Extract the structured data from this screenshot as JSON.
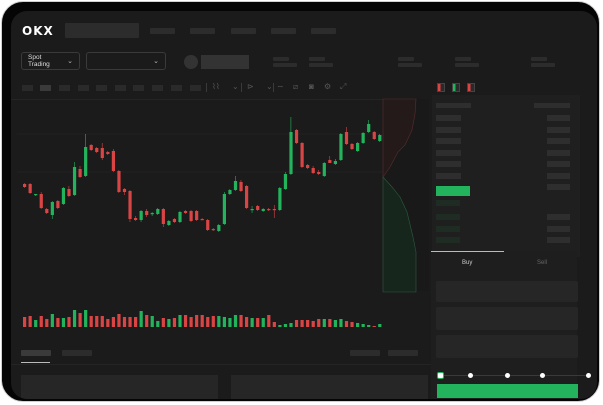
{
  "header": {
    "logo": "OKX"
  },
  "controls": {
    "market_type": "Spot Trading",
    "chevron": "⌄"
  },
  "toolbar": {
    "icons": [
      "line-chart-icon",
      "ruler-icon",
      "camera-icon",
      "settings-icon",
      "fullscreen-icon"
    ]
  },
  "trade": {
    "buy_tab": "Buy",
    "sell_tab": "Sell",
    "slider_value": 0
  },
  "colors": {
    "up": "#23b35c",
    "down": "#d94444",
    "background": "#1b1b1b",
    "accent": "#23b35c"
  },
  "chart_data": {
    "type": "candlestick",
    "candles": [
      [
        58,
        59,
        54,
        55
      ],
      [
        58,
        59,
        48,
        49
      ],
      [
        47,
        48,
        46,
        48
      ],
      [
        48,
        50,
        33,
        34
      ],
      [
        33,
        34,
        28,
        29
      ],
      [
        27,
        41,
        23,
        40
      ],
      [
        41,
        42,
        33,
        34
      ],
      [
        38,
        55,
        37,
        54
      ],
      [
        53,
        56,
        45,
        46
      ],
      [
        47,
        80,
        46,
        75
      ],
      [
        73,
        76,
        64,
        65
      ],
      [
        66,
        108,
        65,
        95
      ],
      [
        97,
        98,
        91,
        92
      ],
      [
        94,
        95,
        89,
        90
      ],
      [
        94,
        99,
        82,
        84
      ],
      [
        90,
        91,
        87,
        88
      ],
      [
        91,
        93,
        70,
        71
      ],
      [
        71,
        72,
        49,
        50
      ],
      [
        53,
        54,
        47,
        50
      ],
      [
        51,
        52,
        20,
        23
      ],
      [
        24,
        26,
        21,
        22
      ],
      [
        22,
        32,
        20,
        31
      ],
      [
        31,
        33,
        25,
        27
      ],
      [
        28,
        30,
        26,
        29
      ],
      [
        28,
        34,
        27,
        33
      ],
      [
        33,
        34,
        15,
        18
      ],
      [
        17,
        22,
        16,
        21
      ],
      [
        23,
        24,
        19,
        20
      ],
      [
        20,
        31,
        19,
        30
      ],
      [
        31,
        32,
        28,
        29
      ],
      [
        31,
        32,
        20,
        21
      ],
      [
        31,
        32,
        21,
        22
      ],
      [
        23,
        24,
        22,
        22
      ],
      [
        22,
        23,
        11,
        12
      ],
      [
        13,
        14,
        11,
        12
      ],
      [
        11,
        18,
        10,
        17
      ],
      [
        18,
        50,
        17,
        48
      ],
      [
        48,
        53,
        47,
        52
      ],
      [
        52,
        66,
        51,
        61
      ],
      [
        60,
        62,
        50,
        51
      ],
      [
        56,
        57,
        33,
        34
      ],
      [
        32,
        36,
        29,
        33
      ],
      [
        36,
        37,
        31,
        32
      ],
      [
        31,
        34,
        30,
        33
      ],
      [
        33,
        34,
        31,
        32
      ],
      [
        33,
        37,
        24,
        32
      ],
      [
        32,
        55,
        31,
        54
      ],
      [
        53,
        70,
        52,
        68
      ],
      [
        68,
        125,
        67,
        110
      ],
      [
        112,
        113,
        98,
        99
      ],
      [
        99,
        100,
        74,
        75
      ],
      [
        77,
        78,
        73,
        74
      ],
      [
        74,
        76,
        68,
        69
      ],
      [
        70,
        72,
        67,
        68
      ],
      [
        66,
        80,
        65,
        79
      ],
      [
        82,
        86,
        79,
        79
      ],
      [
        78,
        83,
        77,
        81
      ],
      [
        82,
        109,
        81,
        108
      ],
      [
        110,
        115,
        97,
        98
      ],
      [
        98,
        99,
        92,
        93
      ],
      [
        91,
        100,
        90,
        99
      ],
      [
        99,
        110,
        98,
        109
      ],
      [
        110,
        122,
        109,
        118
      ],
      [
        110,
        111,
        102,
        103
      ],
      [
        101,
        108,
        100,
        107
      ]
    ],
    "volume": [
      10,
      11,
      7,
      11,
      8,
      13,
      9,
      9,
      10,
      17,
      14,
      17,
      11,
      11,
      11,
      8,
      10,
      13,
      10,
      10,
      10,
      16,
      12,
      11,
      6,
      9,
      8,
      9,
      12,
      12,
      10,
      12,
      12,
      10,
      11,
      11,
      10,
      9,
      12,
      12,
      10,
      9,
      9,
      9,
      12,
      5,
      2,
      3,
      4,
      7,
      7,
      7,
      6,
      8,
      8,
      8,
      7,
      8,
      6,
      5,
      4,
      3,
      2,
      1,
      3
    ]
  }
}
